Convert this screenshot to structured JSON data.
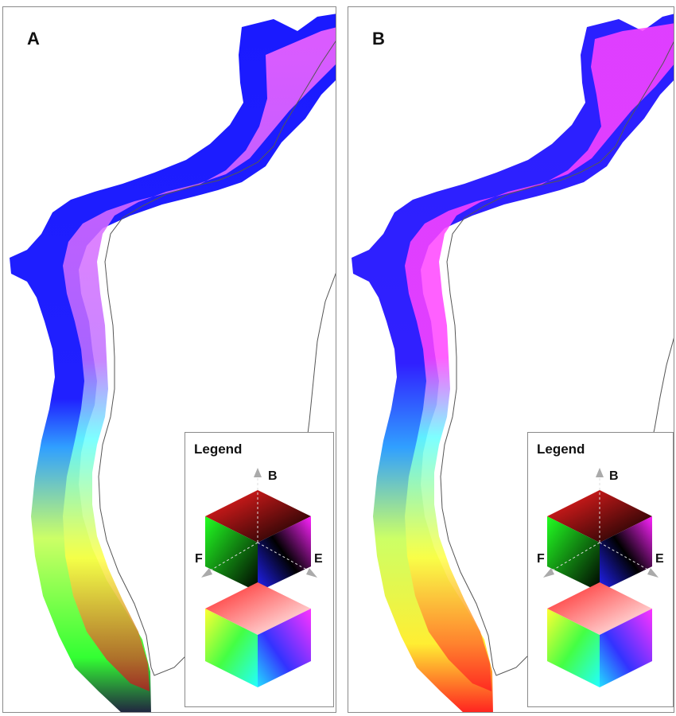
{
  "panels": [
    {
      "label": "A",
      "legend": {
        "title": "Legend",
        "axes": [
          "B",
          "F",
          "E"
        ]
      },
      "colors": {
        "deep": "#1a1aff",
        "violet": "#7a3cff",
        "magenta": "#ff33ff",
        "cyan": "#66ffff",
        "yellow": "#ffff33",
        "green": "#33ff33",
        "dark": "#202040"
      }
    },
    {
      "label": "B",
      "legend": {
        "title": "Legend",
        "axes": [
          "B",
          "F",
          "E"
        ]
      },
      "colors": {
        "deep": "#1a1aff",
        "violet": "#9a33ff",
        "magenta": "#ff33ff",
        "cyan": "#66ffff",
        "yellow": "#ffff33",
        "green": "#33ff33",
        "dark": "#ff2020"
      }
    }
  ]
}
